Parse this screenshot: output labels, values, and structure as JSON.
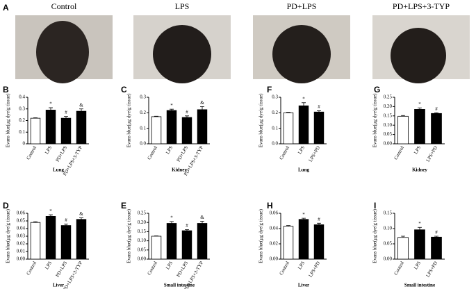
{
  "panel_a": {
    "letter": "A",
    "labels": [
      "Control",
      "LPS",
      "PD+LPS",
      "PD+LPS+3-TYP"
    ]
  },
  "chart_data": [
    {
      "type": "bar",
      "letter": "B",
      "ylabel": "Evans blue(μg dye/g tissue)",
      "xlabel": "Lung",
      "categories": [
        "Control",
        "LPS",
        "PD+LPS",
        "PD+LPS+3-TYP"
      ],
      "values": [
        0.22,
        0.29,
        0.22,
        0.28
      ],
      "errors": [
        0.004,
        0.02,
        0.015,
        0.02
      ],
      "markers": [
        null,
        "*",
        "#",
        "&"
      ],
      "colors": [
        "#ffffff",
        "#000000",
        "#000000",
        "#000000"
      ],
      "ylim": [
        0,
        0.4
      ],
      "yticks": [
        0,
        0.1,
        0.2,
        0.3,
        0.4
      ]
    },
    {
      "type": "bar",
      "letter": "C",
      "ylabel": "Evans blue(μg dye/g tissue)",
      "xlabel": "Kidney",
      "categories": [
        "Control",
        "LPS",
        "PD+LPS",
        "PD+LPS+3-TYP"
      ],
      "values": [
        0.175,
        0.215,
        0.17,
        0.22
      ],
      "errors": [
        0.003,
        0.008,
        0.01,
        0.02
      ],
      "markers": [
        null,
        "*",
        "#",
        "&"
      ],
      "colors": [
        "#ffffff",
        "#000000",
        "#000000",
        "#000000"
      ],
      "ylim": [
        0,
        0.3
      ],
      "yticks": [
        {
          "value": 0,
          "label": "0.0"
        },
        0.1,
        0.2,
        0.3
      ]
    },
    {
      "type": "bar",
      "letter": "F",
      "ylabel": "Evans blue(μg dye/g tissue)",
      "xlabel": "Lung",
      "categories": [
        "Control",
        "LPS",
        "LPS+PD"
      ],
      "values": [
        0.2,
        0.245,
        0.205
      ],
      "errors": [
        0.003,
        0.02,
        0.008
      ],
      "markers": [
        null,
        "*",
        "#"
      ],
      "colors": [
        "#ffffff",
        "#000000",
        "#000000"
      ],
      "ylim": [
        0,
        0.3
      ],
      "yticks": [
        {
          "value": 0,
          "label": "0.0"
        },
        0.1,
        0.2,
        0.3
      ]
    },
    {
      "type": "bar",
      "letter": "G",
      "ylabel": "Evans blue(μg dye/g tissue)",
      "xlabel": "Kidney",
      "categories": [
        "Control",
        "LPS",
        "LPS+PD"
      ],
      "values": [
        0.148,
        0.185,
        0.163
      ],
      "errors": [
        0.004,
        0.008,
        0.004
      ],
      "markers": [
        null,
        "*",
        "#"
      ],
      "colors": [
        "#ffffff",
        "#000000",
        "#000000"
      ],
      "ylim": [
        0,
        0.25
      ],
      "yticks": [
        {
          "value": 0,
          "label": "0.00"
        },
        0.05,
        {
          "value": 0.1,
          "label": "0.10"
        },
        0.15,
        {
          "value": 0.2,
          "label": "0.20"
        },
        0.25
      ]
    },
    {
      "type": "bar",
      "letter": "D",
      "ylabel": "Evans blue(μg dye/g tissue)",
      "xlabel": "Liver",
      "categories": [
        "Control",
        "LPS",
        "PD+LPS",
        "PD+LPS+3-TYP"
      ],
      "values": [
        0.048,
        0.056,
        0.044,
        0.052
      ],
      "errors": [
        0.001,
        0.002,
        0.002,
        0.002
      ],
      "markers": [
        null,
        "*",
        "#",
        "&"
      ],
      "colors": [
        "#ffffff",
        "#000000",
        "#000000",
        "#000000"
      ],
      "ylim": [
        0,
        0.06
      ],
      "yticks": [
        {
          "value": 0,
          "label": "0.00"
        },
        0.01,
        0.02,
        0.03,
        0.04,
        0.05,
        0.06
      ]
    },
    {
      "type": "bar",
      "letter": "E",
      "ylabel": "Evans blue(μg dye/g tissue)",
      "xlabel": "Small intestine",
      "categories": [
        "Control",
        "LPS",
        "PD+LPS",
        "PD+LPS+3-TYP"
      ],
      "values": [
        0.125,
        0.195,
        0.155,
        0.195
      ],
      "errors": [
        0.002,
        0.01,
        0.006,
        0.012
      ],
      "markers": [
        null,
        "*",
        "#",
        "&"
      ],
      "colors": [
        "#ffffff",
        "#000000",
        "#000000",
        "#000000"
      ],
      "ylim": [
        0,
        0.25
      ],
      "yticks": [
        {
          "value": 0,
          "label": "0.00"
        },
        0.05,
        {
          "value": 0.1,
          "label": "0.10"
        },
        0.15,
        {
          "value": 0.2,
          "label": "0.20"
        },
        0.25
      ]
    },
    {
      "type": "bar",
      "letter": "H",
      "ylabel": "Evans blue(μg dye/g tissue)",
      "xlabel": "Liver",
      "categories": [
        "Control",
        "LPS",
        "LPS+PD"
      ],
      "values": [
        0.043,
        0.052,
        0.045
      ],
      "errors": [
        0.001,
        0.0015,
        0.002
      ],
      "markers": [
        null,
        "*",
        "#"
      ],
      "colors": [
        "#ffffff",
        "#000000",
        "#000000"
      ],
      "ylim": [
        0,
        0.06
      ],
      "yticks": [
        {
          "value": 0,
          "label": "0.00"
        },
        0.02,
        0.04,
        0.06
      ]
    },
    {
      "type": "bar",
      "letter": "I",
      "ylabel": "Evans blue(μg dye/g tissue)",
      "xlabel": "Small intestine",
      "categories": [
        "Control",
        "LPS",
        "LPS+PD"
      ],
      "values": [
        0.071,
        0.096,
        0.072
      ],
      "errors": [
        0.004,
        0.008,
        0.003
      ],
      "markers": [
        null,
        "*",
        "#"
      ],
      "colors": [
        "#ffffff",
        "#000000",
        "#000000"
      ],
      "ylim": [
        0,
        0.15
      ],
      "yticks": [
        {
          "value": 0,
          "label": "0.00"
        },
        0.05,
        {
          "value": 0.1,
          "label": "0.10"
        },
        0.15
      ]
    }
  ]
}
